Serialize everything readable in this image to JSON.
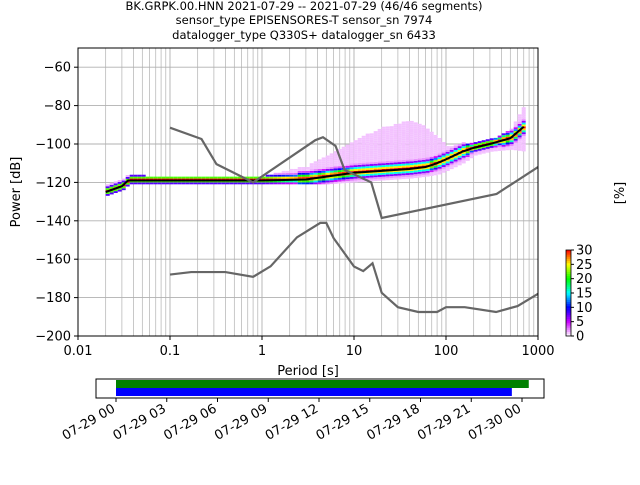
{
  "title_lines": [
    "BK.GRPK.00.HNN   2021-07-29 -- 2021-07-29  (46/46 segments)",
    "sensor_type EPISENSORES-T sensor_sn 7974",
    "datalogger_type Q330S+ datalogger_sn 6433"
  ],
  "chart_data": [
    {
      "type": "heatmap",
      "subtype": "probabilistic power spectral density",
      "xlabel": "Period [s]",
      "ylabel": "Power [dB]",
      "xscale": "log",
      "xlim": [
        0.01,
        1000
      ],
      "ylim": [
        -200,
        -50
      ],
      "xticks": [
        0.01,
        0.1,
        1,
        10,
        100,
        1000
      ],
      "xtick_labels": [
        "0.01",
        "0.1",
        "1",
        "10",
        "100",
        "1000"
      ],
      "yticks": [
        -200,
        -180,
        -160,
        -140,
        -120,
        -100,
        -80,
        -60
      ],
      "ytick_labels": [
        "−200",
        "−180",
        "−160",
        "−140",
        "−120",
        "−100",
        "−80",
        "−60"
      ],
      "grid": true,
      "colorbar": {
        "label": "[%]",
        "range": [
          0,
          30
        ],
        "ticks": [
          0,
          5,
          10,
          15,
          20,
          25,
          30
        ],
        "tick_labels": [
          "0",
          "5",
          "10",
          "15",
          "20",
          "25",
          "30"
        ],
        "colormap": [
          "#ffffff",
          "#cc00ff",
          "#0000ff",
          "#00ffff",
          "#00ff00",
          "#ffff00",
          "#ff0000"
        ]
      },
      "series": [
        {
          "role": "mean",
          "color": "#000000",
          "x": [
            0.02,
            0.03,
            0.035,
            0.05,
            0.1,
            0.5,
            1,
            3,
            5,
            10,
            20,
            40,
            60,
            80,
            100,
            150,
            200,
            300,
            500,
            700
          ],
          "y": [
            -125,
            -122,
            -119,
            -119,
            -119,
            -119,
            -119,
            -118.5,
            -117,
            -115,
            -114,
            -113,
            -112,
            -110,
            -108,
            -104,
            -102,
            -100,
            -97,
            -91
          ]
        },
        {
          "role": "noise model",
          "color": "#666666",
          "x": [
            0.1,
            0.22,
            0.32,
            0.8,
            3.8,
            4.6,
            6.3,
            7.9,
            15.4,
            20,
            354.8,
            1000
          ],
          "y": [
            -91.5,
            -97.4,
            -110.5,
            -120,
            -98,
            -96.5,
            -101,
            -113.5,
            -120,
            -138.5,
            -126,
            -112
          ]
        },
        {
          "role": "noise model",
          "color": "#666666",
          "x": [
            0.1,
            0.17,
            0.4,
            0.8,
            1.24,
            2.4,
            4.3,
            5,
            6,
            10,
            12.6,
            15.9,
            20,
            30,
            50,
            80,
            100,
            160,
            350,
            600,
            1000
          ],
          "y": [
            -168,
            -166.7,
            -166.7,
            -169.2,
            -163.7,
            -148.6,
            -141.1,
            -141.1,
            -149,
            -163.8,
            -166.2,
            -162.1,
            -177.5,
            -185,
            -187.5,
            -187.5,
            -185,
            -185,
            -187.5,
            -184.4,
            -178
          ]
        }
      ],
      "density_band": {
        "x": [
          0.02,
          0.03,
          0.035,
          0.05,
          0.1,
          0.5,
          1,
          3,
          5,
          10,
          20,
          40,
          60,
          80,
          100,
          150,
          200,
          300,
          500,
          700
        ],
        "y_min": [
          -127,
          -124,
          -121,
          -121,
          -121,
          -121,
          -121,
          -121,
          -121,
          -120,
          -119,
          -118,
          -117,
          -116,
          -114,
          -110,
          -106,
          -104,
          -103,
          -104
        ],
        "y_max": [
          -122,
          -119,
          -116,
          -117,
          -118,
          -118,
          -117,
          -112,
          -106,
          -98,
          -92,
          -88,
          -92,
          -97,
          -102,
          -100,
          -100,
          -98,
          -92,
          -80
        ]
      }
    },
    {
      "type": "timeline",
      "xlabel": "",
      "ticks": [
        "07-29 00",
        "07-29 03",
        "07-29 06",
        "07-29 09",
        "07-29 12",
        "07-29 15",
        "07-29 18",
        "07-29 21",
        "07-30 00"
      ],
      "series": [
        {
          "role": "data coverage",
          "color": "#008000",
          "start_hour": 0,
          "end_hour": 24.4
        },
        {
          "role": "psd coverage",
          "color": "#0000ff",
          "start_hour": 0,
          "end_hour": 23.4
        }
      ]
    }
  ]
}
